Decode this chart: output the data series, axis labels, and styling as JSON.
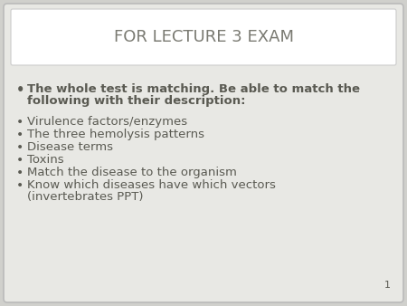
{
  "title": "FOR LECTURE 3 EXAM",
  "title_fontsize": 13,
  "title_color": "#7a7a72",
  "background_color": "#d0d0cc",
  "slide_bg": "#e8e8e4",
  "header_bg": "#ffffff",
  "bold_bullet_line1": "The whole test is matching. Be able to match the",
  "bold_bullet_line2": "following with their description:",
  "bullets": [
    "Virulence factors/enzymes",
    "The three hemolysis patterns",
    "Disease terms",
    "Toxins",
    "Match the disease to the organism",
    "Know which diseases have which vectors",
    "(invertebrates PPT)"
  ],
  "bullet_fontsize": 9.5,
  "bold_fontsize": 9.5,
  "bullet_color": "#5a5a52",
  "page_number": "1",
  "page_number_fontsize": 8,
  "header_border_color": "#cccccc"
}
